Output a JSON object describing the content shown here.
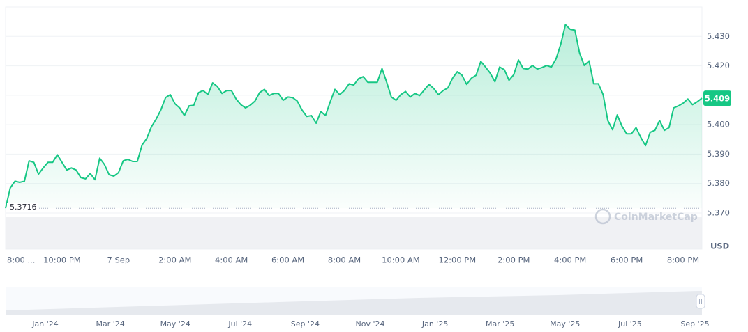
{
  "chart_data": {
    "type": "line",
    "currency": "USD",
    "watermark": "CoinMarketCap",
    "open_line": 5.3716,
    "price_tag": 5.409,
    "color": "#16c784",
    "grid": true,
    "ylim": [
      5.3577,
      5.44
    ],
    "yticks": [
      {
        "value": 5.37,
        "label": "5.370"
      },
      {
        "value": 5.38,
        "label": "5.380"
      },
      {
        "value": 5.39,
        "label": "5.390"
      },
      {
        "value": 5.4,
        "label": "5.400"
      },
      {
        "value": 5.41,
        "label": "5.410"
      },
      {
        "value": 5.42,
        "label": "5.420"
      },
      {
        "value": 5.43,
        "label": "5.430"
      }
    ],
    "categories": [
      "8:00 ...",
      null,
      null,
      null,
      null,
      null,
      null,
      null,
      null,
      null,
      null,
      null,
      "10:00 PM",
      null,
      null,
      null,
      null,
      null,
      null,
      null,
      null,
      null,
      null,
      null,
      "7 Sep",
      null,
      null,
      null,
      null,
      null,
      null,
      null,
      null,
      null,
      null,
      null,
      "2:00 AM",
      null,
      null,
      null,
      null,
      null,
      null,
      null,
      null,
      null,
      null,
      null,
      "4:00 AM",
      null,
      null,
      null,
      null,
      null,
      null,
      null,
      null,
      null,
      null,
      null,
      "6:00 AM",
      null,
      null,
      null,
      null,
      null,
      null,
      null,
      null,
      null,
      null,
      null,
      "8:00 AM",
      null,
      null,
      null,
      null,
      null,
      null,
      null,
      null,
      null,
      null,
      null,
      "10:00 AM",
      null,
      null,
      null,
      null,
      null,
      null,
      null,
      null,
      null,
      null,
      null,
      "12:00 PM",
      null,
      null,
      null,
      null,
      null,
      null,
      null,
      null,
      null,
      null,
      null,
      "2:00 PM",
      null,
      null,
      null,
      null,
      null,
      null,
      null,
      null,
      null,
      null,
      null,
      "4:00 PM",
      null,
      null,
      null,
      null,
      null,
      null,
      null,
      null,
      null,
      null,
      null,
      "6:00 PM",
      null,
      null,
      null,
      null,
      null,
      null,
      null,
      null,
      null,
      null,
      null,
      "8:00 PM",
      null,
      null,
      null,
      null
    ],
    "values": [
      5.3716,
      5.3785,
      5.3808,
      5.3804,
      5.3808,
      5.3877,
      5.3872,
      5.3832,
      5.3853,
      5.3872,
      5.3872,
      5.3898,
      5.3872,
      5.3846,
      5.3853,
      5.3846,
      5.382,
      5.3816,
      5.3834,
      5.3813,
      5.3886,
      5.3865,
      5.383,
      5.3825,
      5.3837,
      5.3877,
      5.3882,
      5.3875,
      5.3875,
      5.3931,
      5.3953,
      5.3993,
      5.4019,
      5.405,
      5.4092,
      5.4102,
      5.4071,
      5.4057,
      5.4031,
      5.4064,
      5.4066,
      5.4109,
      5.4116,
      5.4102,
      5.4142,
      5.413,
      5.4106,
      5.4116,
      5.4116,
      5.4087,
      5.4068,
      5.4057,
      5.4066,
      5.408,
      5.4109,
      5.412,
      5.4099,
      5.4106,
      5.4106,
      5.4083,
      5.4094,
      5.4092,
      5.408,
      5.405,
      5.4028,
      5.4031,
      5.4005,
      5.4045,
      5.4031,
      5.4078,
      5.412,
      5.4102,
      5.4116,
      5.4139,
      5.4135,
      5.4156,
      5.4163,
      5.4144,
      5.4144,
      5.4144,
      5.4191,
      5.4144,
      5.4094,
      5.4083,
      5.4102,
      5.4113,
      5.4094,
      5.4106,
      5.4099,
      5.4118,
      5.4137,
      5.4123,
      5.4102,
      5.4116,
      5.4125,
      5.4158,
      5.418,
      5.4168,
      5.4137,
      5.4158,
      5.4168,
      5.4215,
      5.4196,
      5.4175,
      5.4146,
      5.4196,
      5.4187,
      5.4151,
      5.417,
      5.422,
      5.4191,
      5.4189,
      5.4201,
      5.4189,
      5.4194,
      5.4201,
      5.4196,
      5.4224,
      5.4274,
      5.434,
      5.4324,
      5.4321,
      5.4243,
      5.4201,
      5.4217,
      5.4139,
      5.4139,
      5.4102,
      5.4014,
      5.3983,
      5.4033,
      5.3995,
      5.3969,
      5.3969,
      5.399,
      5.3957,
      5.3929,
      5.3974,
      5.3981,
      5.4014,
      5.3981,
      5.399,
      5.4057,
      5.4064,
      5.4073,
      5.4087,
      5.4068,
      5.4078,
      5.409
    ],
    "navigator": {
      "labels": [
        "Jan '24",
        "Mar '24",
        "May '24",
        "Jul '24",
        "Sep '24",
        "Nov '24",
        "Jan '25",
        "Mar '25",
        "May '25",
        "Jul '25",
        "Sep '25"
      ]
    }
  }
}
